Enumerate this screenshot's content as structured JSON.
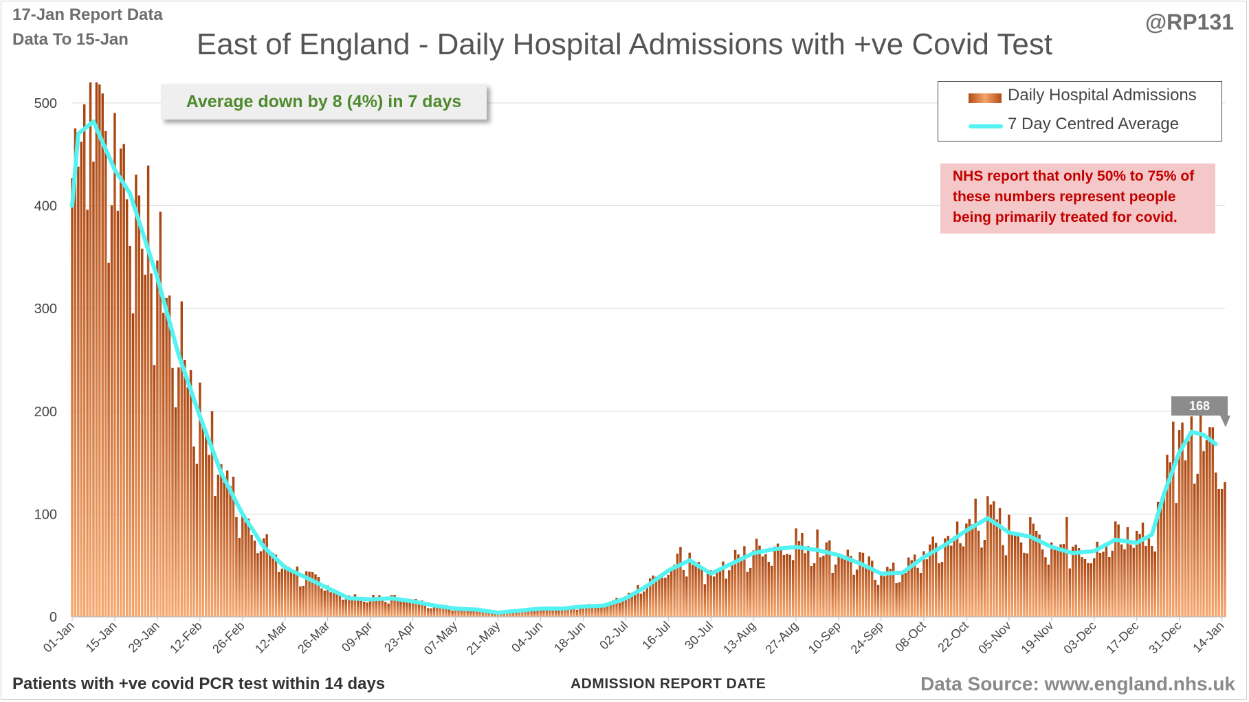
{
  "header": {
    "report_date": "17-Jan Report Data",
    "data_to": "Data To 15-Jan",
    "handle": "@RP131",
    "title": "East of England - Daily Hospital Admissions with +ve Covid Test"
  },
  "footer": {
    "footnote": "Patients with +ve covid PCR test within 14 days",
    "xlabel": "ADMISSION REPORT DATE",
    "source": "Data Source: www.england.nhs.uk"
  },
  "callouts": {
    "average_change": "Average down by 8 (4%) in 7 days",
    "nhs_note_lines": [
      "NHS report that only 50% to 75% of",
      "these numbers represent people",
      "being primarily treated for covid."
    ],
    "last_average_label": "168"
  },
  "legend": {
    "bars": "Daily Hospital Admissions",
    "line": "7 Day Centred Average"
  },
  "colors": {
    "bar_dark": "#a8430f",
    "bar_light": "#f7a86e",
    "average_line": "#55f2f2",
    "gridline": "#d9d9d9",
    "callout_text_green": "#4e8a2c",
    "callout_text_red": "#c20000"
  },
  "chart_data": {
    "type": "bar",
    "x_start": "2021-01-01",
    "x_end": "2022-01-15",
    "x_tick_labels": [
      "01-Jan",
      "15-Jan",
      "29-Jan",
      "12-Feb",
      "26-Feb",
      "12-Mar",
      "26-Mar",
      "09-Apr",
      "23-Apr",
      "07-May",
      "21-May",
      "04-Jun",
      "18-Jun",
      "02-Jul",
      "16-Jul",
      "30-Jul",
      "13-Aug",
      "27-Aug",
      "10-Sep",
      "24-Sep",
      "08-Oct",
      "22-Oct",
      "05-Nov",
      "19-Nov",
      "03-Dec",
      "17-Dec",
      "31-Dec",
      "14-Jan"
    ],
    "y_ticks": [
      0,
      100,
      200,
      300,
      400,
      500
    ],
    "ylim": [
      0,
      520
    ],
    "grid": true,
    "legend_position": "top-right",
    "average_anchors": [
      {
        "x": "2021-01-01",
        "y": 400
      },
      {
        "x": "2021-01-03",
        "y": 470
      },
      {
        "x": "2021-01-08",
        "y": 482
      },
      {
        "x": "2021-01-15",
        "y": 435
      },
      {
        "x": "2021-01-20",
        "y": 412
      },
      {
        "x": "2021-01-29",
        "y": 330
      },
      {
        "x": "2021-02-05",
        "y": 255
      },
      {
        "x": "2021-02-12",
        "y": 195
      },
      {
        "x": "2021-02-19",
        "y": 140
      },
      {
        "x": "2021-02-26",
        "y": 100
      },
      {
        "x": "2021-03-05",
        "y": 68
      },
      {
        "x": "2021-03-12",
        "y": 48
      },
      {
        "x": "2021-03-19",
        "y": 38
      },
      {
        "x": "2021-03-26",
        "y": 28
      },
      {
        "x": "2021-04-02",
        "y": 18
      },
      {
        "x": "2021-04-09",
        "y": 17
      },
      {
        "x": "2021-04-16",
        "y": 18
      },
      {
        "x": "2021-04-23",
        "y": 15
      },
      {
        "x": "2021-04-30",
        "y": 11
      },
      {
        "x": "2021-05-07",
        "y": 8
      },
      {
        "x": "2021-05-14",
        "y": 7
      },
      {
        "x": "2021-05-21",
        "y": 4
      },
      {
        "x": "2021-05-28",
        "y": 6
      },
      {
        "x": "2021-06-04",
        "y": 8
      },
      {
        "x": "2021-06-11",
        "y": 8
      },
      {
        "x": "2021-06-18",
        "y": 10
      },
      {
        "x": "2021-06-25",
        "y": 11
      },
      {
        "x": "2021-07-02",
        "y": 18
      },
      {
        "x": "2021-07-09",
        "y": 30
      },
      {
        "x": "2021-07-16",
        "y": 45
      },
      {
        "x": "2021-07-23",
        "y": 55
      },
      {
        "x": "2021-07-30",
        "y": 42
      },
      {
        "x": "2021-08-06",
        "y": 52
      },
      {
        "x": "2021-08-13",
        "y": 62
      },
      {
        "x": "2021-08-20",
        "y": 66
      },
      {
        "x": "2021-08-27",
        "y": 68
      },
      {
        "x": "2021-09-03",
        "y": 65
      },
      {
        "x": "2021-09-10",
        "y": 60
      },
      {
        "x": "2021-09-17",
        "y": 52
      },
      {
        "x": "2021-09-24",
        "y": 42
      },
      {
        "x": "2021-10-01",
        "y": 43
      },
      {
        "x": "2021-10-08",
        "y": 58
      },
      {
        "x": "2021-10-15",
        "y": 70
      },
      {
        "x": "2021-10-22",
        "y": 84
      },
      {
        "x": "2021-10-29",
        "y": 96
      },
      {
        "x": "2021-11-05",
        "y": 82
      },
      {
        "x": "2021-11-12",
        "y": 78
      },
      {
        "x": "2021-11-19",
        "y": 68
      },
      {
        "x": "2021-11-26",
        "y": 62
      },
      {
        "x": "2021-12-03",
        "y": 64
      },
      {
        "x": "2021-12-10",
        "y": 75
      },
      {
        "x": "2021-12-17",
        "y": 72
      },
      {
        "x": "2021-12-22",
        "y": 80
      },
      {
        "x": "2021-12-26",
        "y": 120
      },
      {
        "x": "2021-12-31",
        "y": 160
      },
      {
        "x": "2022-01-04",
        "y": 180
      },
      {
        "x": "2022-01-08",
        "y": 177
      },
      {
        "x": "2022-01-12",
        "y": 168
      }
    ],
    "daily_peaks": [
      {
        "x": "2021-01-07",
        "y": 530
      },
      {
        "x": "2021-01-10",
        "y": 518
      },
      {
        "x": "2021-01-18",
        "y": 460
      },
      {
        "x": "2021-02-26",
        "y": 100
      },
      {
        "x": "2021-07-20",
        "y": 68
      },
      {
        "x": "2021-08-27",
        "y": 86
      },
      {
        "x": "2021-09-03",
        "y": 85
      },
      {
        "x": "2021-10-25",
        "y": 115
      },
      {
        "x": "2021-11-24",
        "y": 97
      },
      {
        "x": "2021-12-29",
        "y": 190
      },
      {
        "x": "2022-01-04",
        "y": 195
      },
      {
        "x": "2022-01-07",
        "y": 205
      }
    ]
  }
}
